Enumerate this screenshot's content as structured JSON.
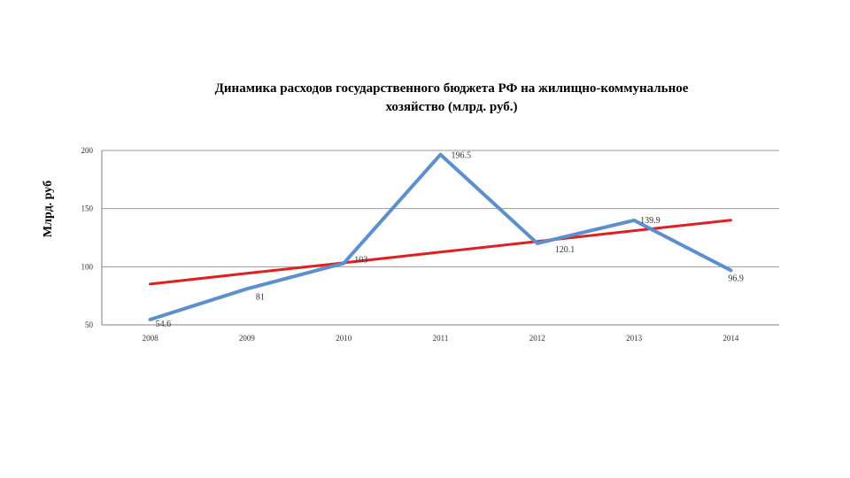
{
  "chart_data": {
    "type": "line",
    "title_line1": "Динамика расходов государственного бюджета РФ на жилищно-коммунальное",
    "title_line2": "хозяйство (млрд. руб.)",
    "xlabel": "",
    "ylabel": "Млрд. руб",
    "categories": [
      "2008",
      "2009",
      "2010",
      "2011",
      "2012",
      "2013",
      "2014"
    ],
    "ylim": [
      50,
      200
    ],
    "yticks": [
      50,
      100,
      150,
      200
    ],
    "grid": true,
    "legend": "none",
    "series": [
      {
        "values": [
          54.6,
          81,
          103,
          196.5,
          120.1,
          139.9,
          96.9
        ],
        "labels": [
          "54.6",
          "81",
          "103",
          "196.5",
          "120.1",
          "139.9",
          "96.9"
        ],
        "color": "#5b8fd0"
      },
      {
        "values": [
          85.1,
          94.3,
          103.4,
          112.6,
          121.8,
          131.0,
          140.1
        ],
        "color": "#e02020",
        "trendline": true
      }
    ]
  }
}
